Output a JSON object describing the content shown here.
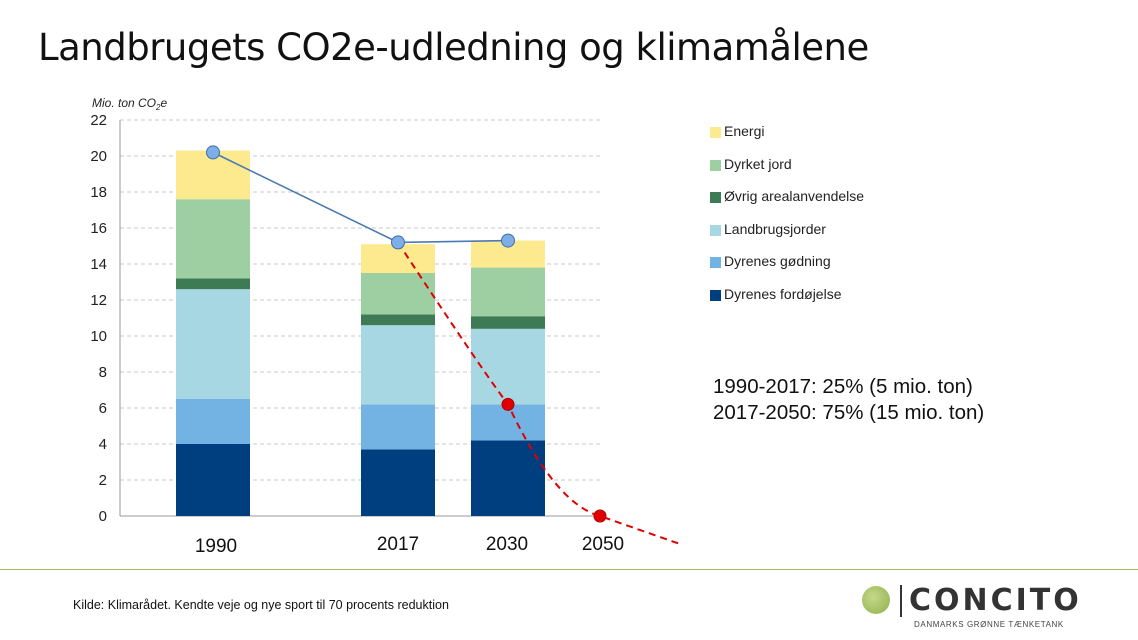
{
  "title": "Landbrugets CO2e-udledning og klimamålene",
  "chart_data": {
    "type": "bar",
    "stacked": true,
    "ylabel": "Mio. ton CO2e",
    "ylim": [
      0,
      22
    ],
    "yticks": [
      0,
      2,
      4,
      6,
      8,
      10,
      12,
      14,
      16,
      18,
      20,
      22
    ],
    "categories": [
      "1990",
      "2017",
      "2030",
      "2050"
    ],
    "series": [
      {
        "name": "Dyrenes fordøjelse",
        "color": "#003f7f",
        "values": [
          4.0,
          3.7,
          4.2,
          null
        ]
      },
      {
        "name": "Dyrenes gødning",
        "color": "#72b3e4",
        "values": [
          2.5,
          2.5,
          2.0,
          null
        ]
      },
      {
        "name": "Landbrugsjorder",
        "color": "#a8d7e4",
        "values": [
          6.1,
          4.4,
          4.2,
          null
        ]
      },
      {
        "name": "Øvrig arealanvendelse",
        "color": "#3d7b54",
        "values": [
          0.6,
          0.6,
          0.7,
          null
        ]
      },
      {
        "name": "Dyrket jord",
        "color": "#9dcfa3",
        "values": [
          4.4,
          2.3,
          2.7,
          null
        ]
      },
      {
        "name": "Energi",
        "color": "#fde98e",
        "values": [
          2.7,
          1.6,
          1.5,
          null
        ]
      }
    ],
    "total_line": {
      "name": "Total",
      "color": "#4a7ab3",
      "points": [
        [
          "1990",
          20.2
        ],
        [
          "2017",
          15.2
        ],
        [
          "2030",
          15.3
        ]
      ]
    },
    "target_line": {
      "name": "Reduktionsmål",
      "color": "#e00000",
      "points": [
        [
          "2017",
          15.2
        ],
        [
          "2030",
          6.2
        ],
        [
          "2050",
          0.0
        ]
      ],
      "marked": [
        "2030",
        "2050"
      ]
    }
  },
  "legend": [
    {
      "label": "Energi",
      "color": "#fde98e"
    },
    {
      "label": "Dyrket jord",
      "color": "#9dcfa3"
    },
    {
      "label": "Øvrig arealanvendelse",
      "color": "#3d7b54"
    },
    {
      "label": "Landbrugsjorder",
      "color": "#a8d7e4"
    },
    {
      "label": "Dyrenes gødning",
      "color": "#72b3e4"
    },
    {
      "label": "Dyrenes fordøjelse",
      "color": "#003f7f"
    }
  ],
  "stats": {
    "line1": "1990-2017: 25% (5 mio. ton)",
    "line2": "2017-2050: 75% (15 mio. ton)"
  },
  "source": "Kilde: Klimarådet. Kendte veje og nye sport til 70 procents reduktion",
  "logo": {
    "name": "CONCITO",
    "tagline": "DANMARKS GRØNNE TÆNKETANK"
  }
}
